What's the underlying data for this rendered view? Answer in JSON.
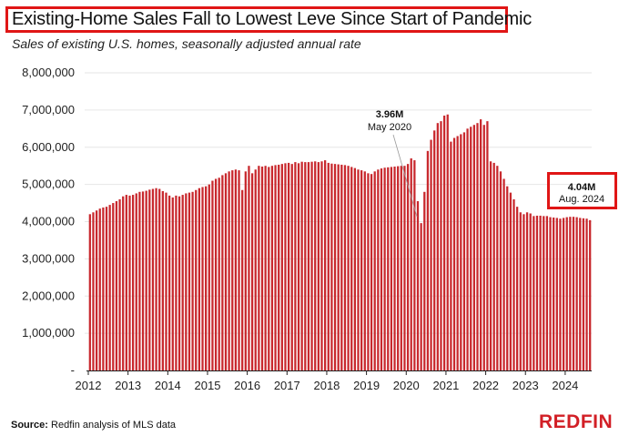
{
  "header": {
    "title": "Existing-Home Sales Fall to Lowest Leve Since Start of Pandemic",
    "subtitle": "Sales of existing U.S. homes, seasonally adjusted annual rate"
  },
  "footer": {
    "source_label": "Source:",
    "source_text": "Redfin analysis of MLS data",
    "logo": "REDFIN"
  },
  "colors": {
    "bar": "#c8282d",
    "highlight": "#e01616",
    "grid": "#e6e6e6"
  },
  "chart_data": {
    "type": "bar",
    "title": "Existing-Home Sales Fall to Lowest Leve Since Start of Pandemic",
    "subtitle": "Sales of existing U.S. homes, seasonally adjusted annual rate",
    "xlabel": "",
    "ylabel": "",
    "ylim": [
      0,
      8000000
    ],
    "y_ticks": [
      0,
      1000000,
      2000000,
      3000000,
      4000000,
      5000000,
      6000000,
      7000000,
      8000000
    ],
    "y_tick_labels": [
      "-",
      "1,000,000",
      "2,000,000",
      "3,000,000",
      "4,000,000",
      "5,000,000",
      "6,000,000",
      "7,000,000",
      "8,000,000"
    ],
    "x_tick_labels": [
      "2012",
      "2013",
      "2014",
      "2015",
      "2016",
      "2017",
      "2018",
      "2019",
      "2020",
      "2021",
      "2022",
      "2023",
      "2024"
    ],
    "grid": "horizontal",
    "start": "2012-01",
    "end": "2024-08",
    "frequency": "monthly",
    "values": [
      4200000,
      4250000,
      4300000,
      4350000,
      4380000,
      4400000,
      4450000,
      4500000,
      4550000,
      4600000,
      4680000,
      4720000,
      4700000,
      4720000,
      4760000,
      4800000,
      4810000,
      4830000,
      4860000,
      4880000,
      4900000,
      4880000,
      4820000,
      4780000,
      4700000,
      4650000,
      4700000,
      4680000,
      4720000,
      4760000,
      4780000,
      4800000,
      4850000,
      4900000,
      4930000,
      4950000,
      5000000,
      5100000,
      5150000,
      5180000,
      5250000,
      5300000,
      5350000,
      5380000,
      5400000,
      5380000,
      4850000,
      5350000,
      5500000,
      5300000,
      5400000,
      5500000,
      5480000,
      5500000,
      5470000,
      5500000,
      5520000,
      5530000,
      5550000,
      5570000,
      5580000,
      5550000,
      5600000,
      5570000,
      5610000,
      5600000,
      5600000,
      5610000,
      5620000,
      5600000,
      5620000,
      5650000,
      5580000,
      5560000,
      5550000,
      5540000,
      5530000,
      5520000,
      5500000,
      5470000,
      5440000,
      5400000,
      5380000,
      5350000,
      5300000,
      5280000,
      5350000,
      5400000,
      5430000,
      5450000,
      5460000,
      5470000,
      5480000,
      5490000,
      5500000,
      5500000,
      5550000,
      5700000,
      5650000,
      4550000,
      3960000,
      4800000,
      5900000,
      6200000,
      6450000,
      6650000,
      6700000,
      6850000,
      6880000,
      6150000,
      6250000,
      6300000,
      6350000,
      6400000,
      6500000,
      6550000,
      6600000,
      6650000,
      6750000,
      6600000,
      6700000,
      5620000,
      5580000,
      5500000,
      5350000,
      5150000,
      4950000,
      4780000,
      4600000,
      4400000,
      4250000,
      4200000,
      4250000,
      4220000,
      4150000,
      4160000,
      4160000,
      4150000,
      4150000,
      4120000,
      4110000,
      4100000,
      4080000,
      4100000,
      4120000,
      4130000,
      4130000,
      4120000,
      4100000,
      4090000,
      4080000,
      4040000
    ],
    "annotations": [
      {
        "value": "3.96M",
        "label": "May 2020"
      },
      {
        "value": "4.04M",
        "label": "Aug. 2024"
      }
    ]
  }
}
